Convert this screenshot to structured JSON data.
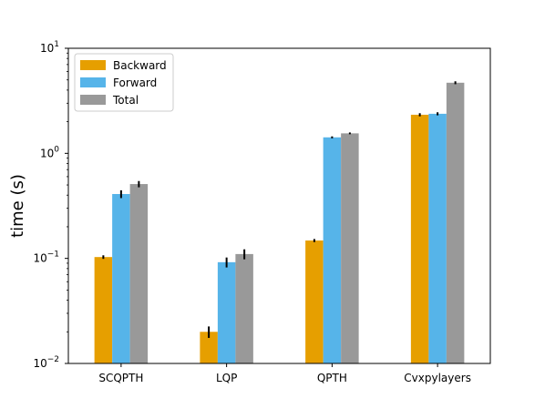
{
  "chart_data": {
    "type": "bar",
    "scale": "log",
    "categories": [
      "SCQPTH",
      "LQP",
      "QPTH",
      "Cvxpylayers"
    ],
    "series": [
      {
        "name": "Backward",
        "color": "#E69F00",
        "values": [
          0.103,
          0.02,
          0.148,
          2.33
        ],
        "errors": [
          0.004,
          0.0025,
          0.005,
          0.08
        ]
      },
      {
        "name": "Forward",
        "color": "#56B4E9",
        "values": [
          0.41,
          0.092,
          1.42,
          2.38
        ],
        "errors": [
          0.035,
          0.01,
          0.03,
          0.08
        ]
      },
      {
        "name": "Total",
        "color": "#999999",
        "values": [
          0.51,
          0.11,
          1.55,
          4.7
        ],
        "errors": [
          0.035,
          0.012,
          0.03,
          0.15
        ]
      }
    ],
    "ylabel": "time (s)",
    "xlabel": "",
    "ylim": [
      0.01,
      10
    ],
    "yticks": [
      {
        "value": 0.01,
        "base": "10",
        "exp": "−2"
      },
      {
        "value": 0.1,
        "base": "10",
        "exp": "−1"
      },
      {
        "value": 1,
        "base": "10",
        "exp": "0"
      },
      {
        "value": 10,
        "base": "10",
        "exp": "1"
      }
    ],
    "legend": "top-left",
    "grid": false
  }
}
